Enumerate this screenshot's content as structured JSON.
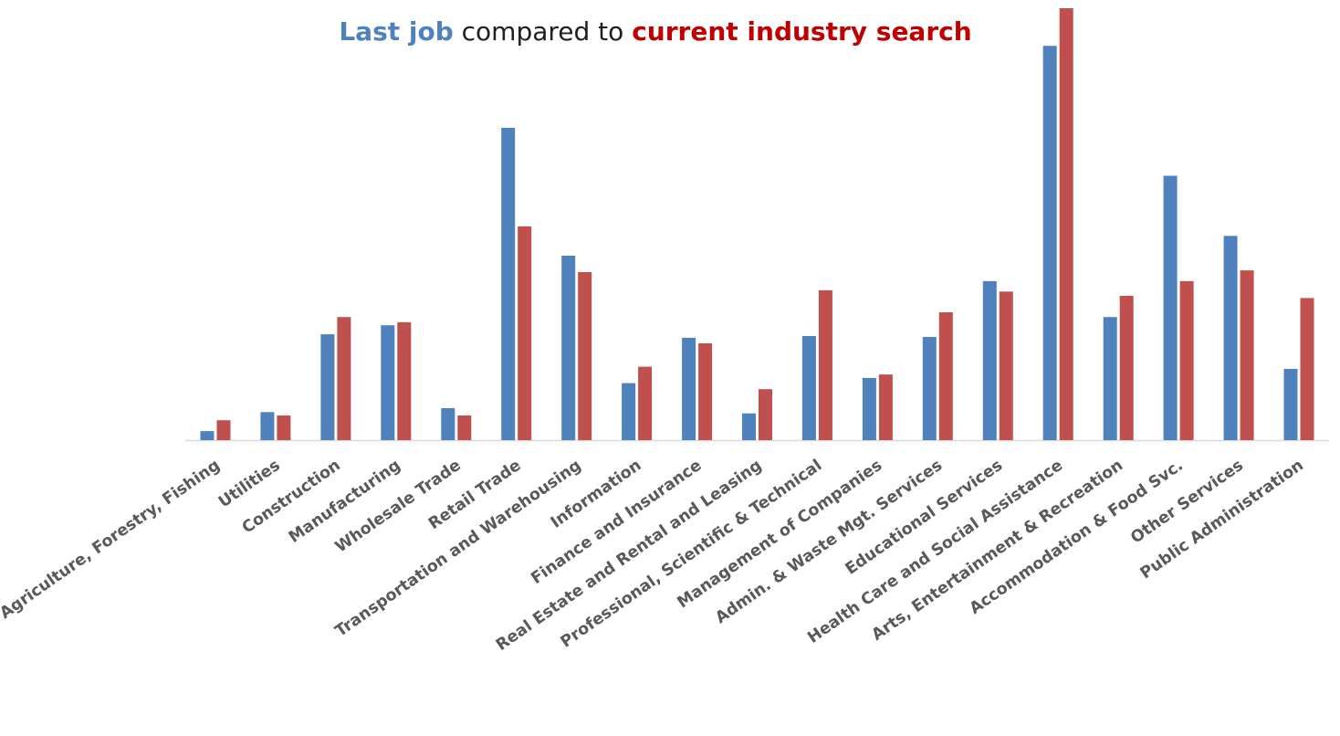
{
  "title": {
    "part1": "Last job",
    "part2": " compared to ",
    "part3": "current industry search"
  },
  "chart_data": {
    "type": "bar",
    "title": "Last job compared to current industry search",
    "xlabel": "",
    "ylabel": "",
    "ylim": [
      0,
      100
    ],
    "grid": false,
    "legend": "none",
    "categories": [
      "Agriculture, Forestry, Fishing",
      "Utilities",
      "Construction",
      "Manufacturing",
      "Wholesale Trade",
      "Retail Trade",
      "Transportation and Warehousing",
      "Information",
      "Finance and Insurance",
      "Real Estate and Rental and Leasing",
      "Professional, Scientific & Technical",
      "Management of Companies",
      "Admin. & Waste Mgt. Services",
      "Educational Services",
      "Health Care and Social Assistance",
      "Arts, Entertainment & Recreation",
      "Accommodation & Food Svc.",
      "Other Services",
      "Public Administration"
    ],
    "series": [
      {
        "color": "#4f81bd",
        "values": [
          2.1,
          6.5,
          24.5,
          26.6,
          7.4,
          72.3,
          42.7,
          13.2,
          23.7,
          6.2,
          24.1,
          14.4,
          23.9,
          36.8,
          91.3,
          28.5,
          61.2,
          47.3,
          16.5
        ]
      },
      {
        "color": "#c0504d",
        "values": [
          4.6,
          5.7,
          28.5,
          27.3,
          5.7,
          49.5,
          38.9,
          17.0,
          22.4,
          11.8,
          34.7,
          15.2,
          29.6,
          34.4,
          100.0,
          33.4,
          36.8,
          39.3,
          32.9
        ]
      }
    ]
  }
}
